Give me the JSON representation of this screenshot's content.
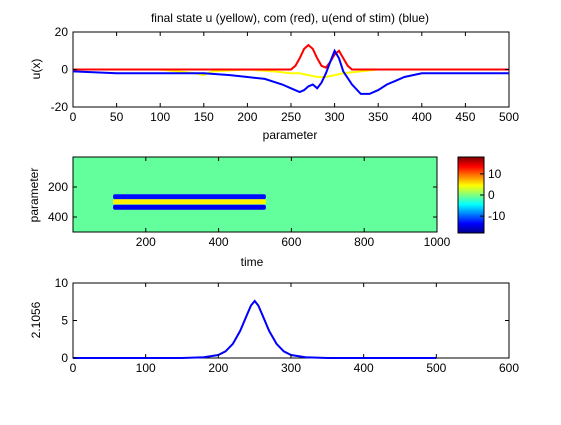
{
  "figure": {
    "title": "final state u (yellow), com (red), u(end of stim) (blue)"
  },
  "chart_data": [
    {
      "type": "line",
      "title": "final state u (yellow), com (red), u(end of stim) (blue)",
      "xlabel": "parameter",
      "ylabel": "u(x)",
      "xlim": [
        0,
        500
      ],
      "ylim": [
        -20,
        20
      ],
      "xticks": [
        0,
        50,
        100,
        150,
        200,
        250,
        300,
        350,
        400,
        450,
        500
      ],
      "yticks": [
        -20,
        0,
        20
      ],
      "series": [
        {
          "color": "#ffff00",
          "x": [
            0,
            100,
            120,
            140,
            150,
            160,
            200,
            230,
            250,
            260,
            270,
            280,
            290,
            300,
            310,
            330,
            350,
            370,
            400,
            450,
            500
          ],
          "y": [
            0,
            0,
            -1,
            -2,
            -3,
            -1,
            0,
            -1,
            -2,
            -2,
            -3,
            -4,
            -4,
            -3,
            -2,
            -1,
            0,
            0,
            0,
            0,
            0
          ]
        },
        {
          "color": "#ff0000",
          "x": [
            0,
            250,
            255,
            260,
            265,
            270,
            275,
            280,
            285,
            290,
            295,
            300,
            305,
            310,
            315,
            320,
            500
          ],
          "y": [
            0,
            0,
            2,
            6,
            11,
            13,
            11,
            6,
            2,
            1,
            4,
            8,
            10,
            6,
            2,
            0,
            0
          ]
        },
        {
          "color": "#0000ff",
          "x": [
            0,
            50,
            100,
            150,
            180,
            200,
            220,
            240,
            250,
            260,
            265,
            270,
            275,
            280,
            285,
            290,
            295,
            300,
            305,
            310,
            320,
            330,
            340,
            350,
            360,
            370,
            380,
            400,
            450,
            500
          ],
          "y": [
            -1,
            -2,
            -2,
            -2,
            -3,
            -4,
            -5,
            -8,
            -10,
            -12,
            -11,
            -9,
            -8,
            -10,
            -7,
            -2,
            4,
            10,
            6,
            -1,
            -8,
            -13,
            -13,
            -11,
            -8,
            -6,
            -4,
            -2,
            -2,
            -2
          ]
        }
      ]
    },
    {
      "type": "heatmap",
      "xlabel": "time",
      "ylabel": "parameter",
      "xlim": [
        0,
        1000
      ],
      "ylim": [
        500,
        0
      ],
      "xticks": [
        200,
        400,
        600,
        800,
        1000
      ],
      "yticks": [
        200,
        400
      ],
      "colormap": "jet",
      "clim": [
        -18,
        18
      ],
      "colorbar_ticks": [
        10,
        0,
        -10
      ],
      "background_value": -1,
      "bands": [
        {
          "y_center": 265,
          "x_start": 110,
          "x_end": 530,
          "value": -13
        },
        {
          "y_center": 298,
          "x_start": 110,
          "x_end": 530,
          "value": 5
        },
        {
          "y_center": 335,
          "x_start": 110,
          "x_end": 530,
          "value": -14
        }
      ]
    },
    {
      "type": "line",
      "xlabel": "",
      "ylabel": "2.1056",
      "xlim": [
        0,
        600
      ],
      "ylim": [
        0,
        10
      ],
      "xticks": [
        0,
        100,
        200,
        300,
        400,
        500,
        600
      ],
      "yticks": [
        0,
        5,
        10
      ],
      "series": [
        {
          "color": "#0000ff",
          "x": [
            0,
            150,
            180,
            200,
            210,
            220,
            230,
            240,
            245,
            250,
            255,
            260,
            270,
            280,
            290,
            300,
            320,
            350,
            400,
            500
          ],
          "y": [
            0,
            0,
            0.1,
            0.4,
            0.9,
            1.9,
            3.6,
            5.9,
            7.0,
            7.6,
            7.0,
            5.9,
            3.6,
            1.9,
            0.9,
            0.4,
            0.1,
            0,
            0,
            0
          ]
        }
      ]
    }
  ]
}
